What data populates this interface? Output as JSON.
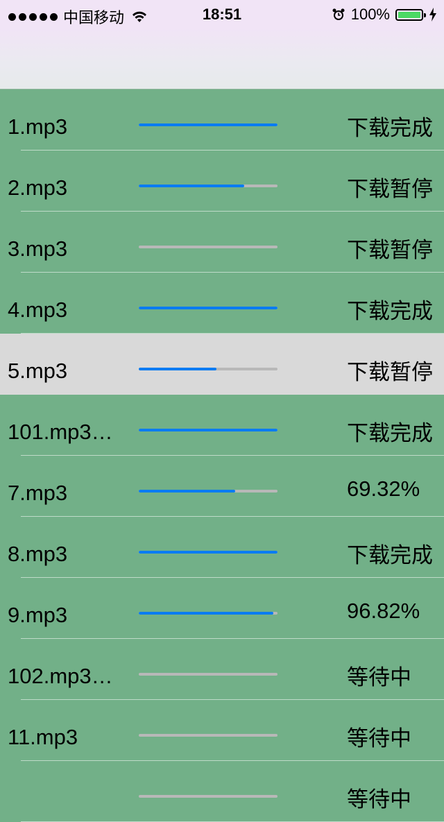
{
  "status_bar": {
    "carrier": "中国移动",
    "time": "18:51",
    "battery_text": "100%"
  },
  "colors": {
    "list_background": "#72b088",
    "selected_row": "#d9d9d9",
    "progress_fill": "#0a7cf2",
    "progress_track": "#b8b8b8",
    "battery_fill": "#4cd964"
  },
  "downloads": [
    {
      "name": "1.mp3",
      "progress": 1.0,
      "status": "下载完成"
    },
    {
      "name": "2.mp3",
      "progress": 0.76,
      "status": "下载暂停"
    },
    {
      "name": "3.mp3",
      "progress": 0.0,
      "status": "下载暂停"
    },
    {
      "name": "4.mp3",
      "progress": 1.0,
      "status": "下载完成"
    },
    {
      "name": "5.mp3",
      "progress": 0.56,
      "status": "下载暂停",
      "selected": true
    },
    {
      "name": "101.mp3…",
      "progress": 1.0,
      "status": "下载完成"
    },
    {
      "name": "7.mp3",
      "progress": 0.6932,
      "status": "69.32%"
    },
    {
      "name": "8.mp3",
      "progress": 1.0,
      "status": "下载完成"
    },
    {
      "name": "9.mp3",
      "progress": 0.9682,
      "status": "96.82%"
    },
    {
      "name": "102.mp3…",
      "progress": 0.0,
      "status": "等待中"
    },
    {
      "name": "11.mp3",
      "progress": 0.0,
      "status": "等待中"
    },
    {
      "name": "",
      "progress": 0.0,
      "status": "等待中"
    }
  ]
}
